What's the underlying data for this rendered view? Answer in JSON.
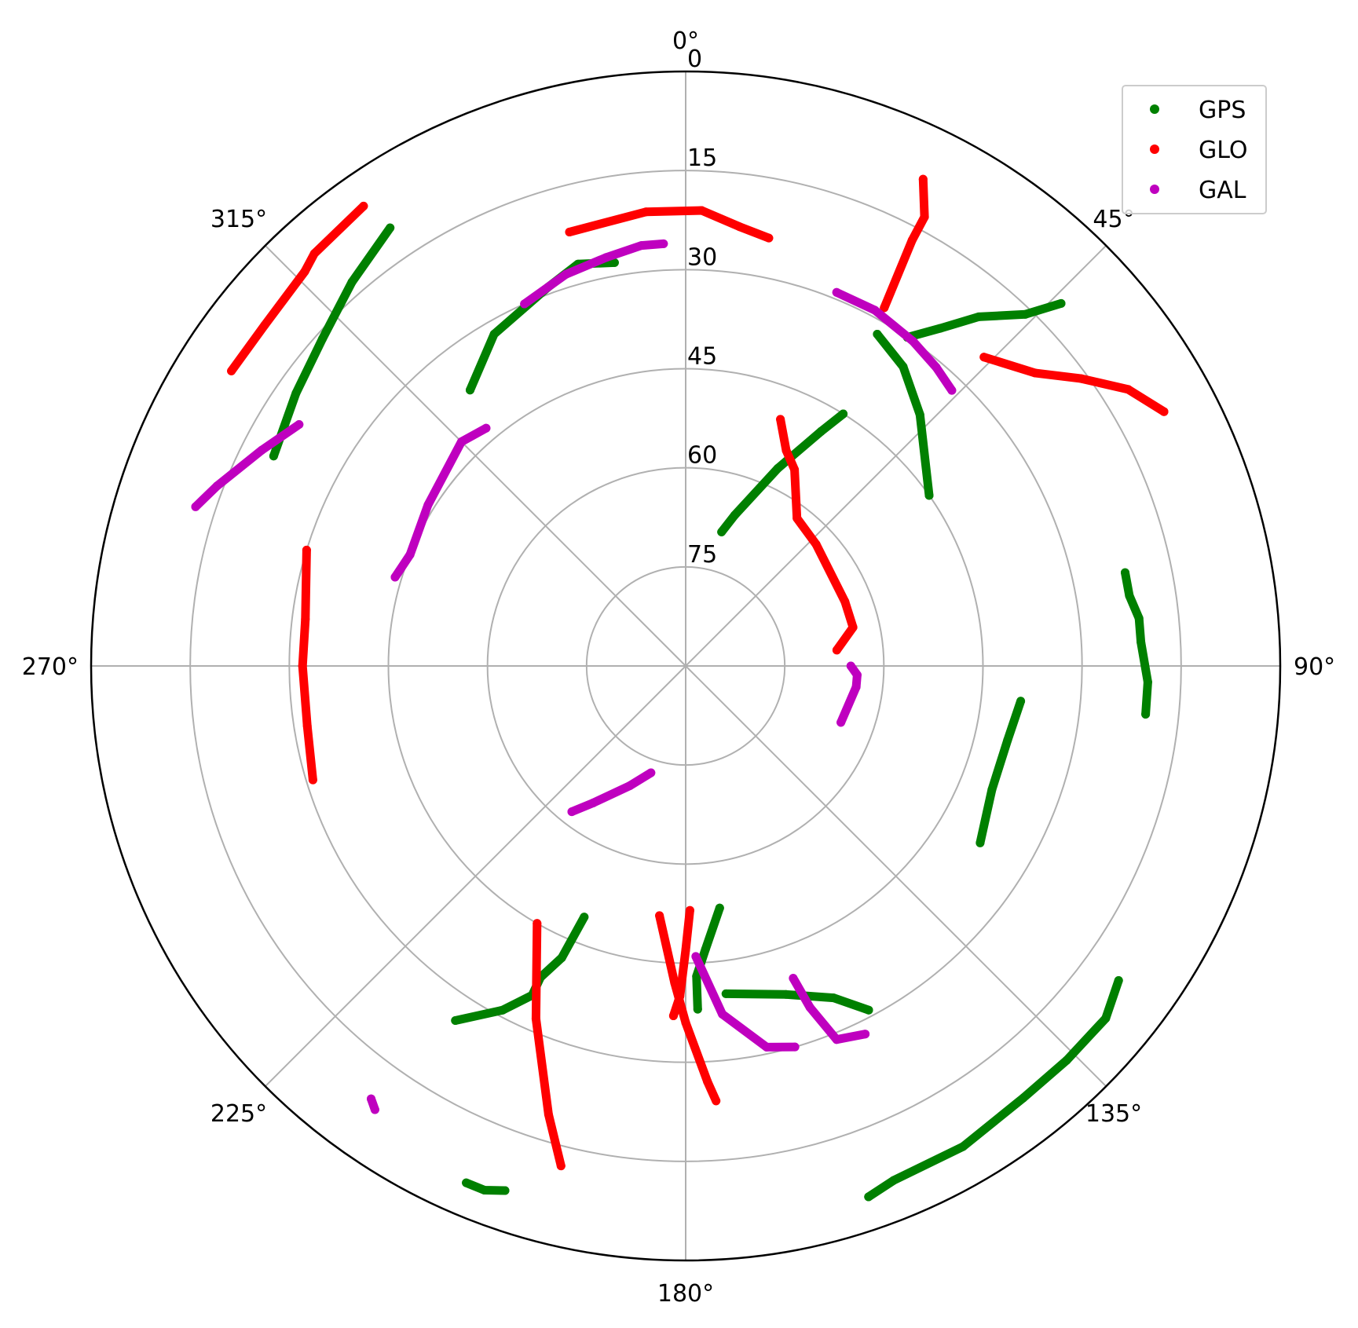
{
  "chart_data": {
    "type": "scatter",
    "projection": "polar",
    "theta_zero_location": "N",
    "theta_direction": "clockwise",
    "r_axis": "elevation (deg), inverted: 90 at center, 0 at rim",
    "rlim": [
      90,
      0
    ],
    "grid": true,
    "legend_position": "upper right",
    "theta_tick_labels": [
      "0°",
      "45°",
      "90°",
      "135°",
      "180°",
      "225°",
      "270°",
      "315°"
    ],
    "theta_tick_values": [
      0,
      45,
      90,
      135,
      180,
      225,
      270,
      315
    ],
    "r_tick_labels": [
      "0",
      "15",
      "30",
      "45",
      "60",
      "75"
    ],
    "r_tick_values": [
      0,
      15,
      30,
      45,
      60,
      75
    ],
    "series": [
      {
        "name": "GPS",
        "color": "#008000",
        "tracks": [
          [
            [
              55,
              45
            ],
            [
              43,
              38
            ],
            [
              36,
              34
            ],
            [
              30,
              32
            ]
          ],
          [
            [
              322,
              37
            ],
            [
              330,
              32
            ],
            [
              340,
              29
            ],
            [
              345,
              27
            ],
            [
              350,
              28
            ]
          ],
          [
            [
              297,
              20
            ],
            [
              305,
              18
            ],
            [
              312,
              16
            ],
            [
              319,
              13
            ],
            [
              326,
              10
            ]
          ],
          [
            [
              34,
              30
            ],
            [
              37,
              26
            ],
            [
              40,
              21
            ],
            [
              44,
              16
            ],
            [
              46,
              11
            ]
          ],
          [
            [
              32,
              45
            ],
            [
              30,
              49
            ],
            [
              25,
              57
            ],
            [
              18,
              66
            ],
            [
              15,
              69
            ]
          ],
          [
            [
              78,
              22
            ],
            [
              81,
              22
            ],
            [
              84,
              21
            ],
            [
              87,
              21
            ],
            [
              92,
              20
            ],
            [
              96,
              20
            ]
          ],
          [
            [
              96,
              39
            ],
            [
              103,
              40
            ],
            [
              112,
              40
            ],
            [
              121,
              38
            ]
          ],
          [
            [
              172,
              53
            ],
            [
              176,
              47
            ],
            [
              178,
              43
            ],
            [
              178,
              38
            ]
          ],
          [
            [
              202,
              49
            ],
            [
              203,
              42
            ],
            [
              205,
              38
            ],
            [
              205,
              35
            ],
            [
              208,
              31
            ],
            [
              213,
              26
            ]
          ],
          [
            [
              173,
              40
            ],
            [
              163,
              38
            ],
            [
              156,
              35
            ],
            [
              152,
              31
            ]
          ],
          [
            [
              126,
              9
            ],
            [
              130,
              7
            ],
            [
              136,
              7
            ],
            [
              142,
              7
            ],
            [
              150,
              6
            ],
            [
              158,
              6
            ],
            [
              161,
              5
            ]
          ],
          [
            [
              199,
              6
            ],
            [
              201,
              5
            ],
            [
              203,
              5
            ]
          ]
        ]
      },
      {
        "name": "GLO",
        "color": "#ff0000",
        "tracks": [
          [
            [
              345,
              22
            ],
            [
              355,
              21
            ],
            [
              2,
              21
            ],
            [
              7,
              23
            ],
            [
              11,
              24
            ]
          ],
          [
            [
              325,
              5
            ],
            [
              318,
              6
            ],
            [
              316,
              7
            ],
            [
              309,
              8
            ],
            [
              303,
              8
            ]
          ],
          [
            [
              26,
              8
            ],
            [
              28,
              13
            ],
            [
              28,
              17
            ],
            [
              29,
              28
            ]
          ],
          [
            [
              44,
              25
            ],
            [
              50,
              21
            ],
            [
              54,
              16
            ],
            [
              58,
              11
            ],
            [
              62,
              8
            ]
          ],
          [
            [
              21,
              50
            ],
            [
              25,
              54
            ],
            [
              29,
              56
            ],
            [
              37,
              62
            ],
            [
              47,
              63
            ],
            [
              68,
              64
            ],
            [
              77,
              64
            ],
            [
              84,
              67
            ]
          ],
          [
            [
              287,
              30
            ],
            [
              277,
              32
            ],
            [
              270,
              32
            ],
            [
              261,
              32
            ],
            [
              253,
              31
            ]
          ],
          [
            [
              210,
              45
            ],
            [
              203,
              32
            ],
            [
              197,
              19
            ],
            [
              194,
              12
            ]
          ],
          [
            [
              186,
              52
            ],
            [
              182,
              42
            ],
            [
              180,
              36
            ],
            [
              177,
              27
            ],
            [
              176,
              24
            ]
          ],
          [
            [
              179,
              53
            ],
            [
              180,
              47
            ],
            [
              181,
              40
            ],
            [
              182,
              37
            ]
          ]
        ]
      },
      {
        "name": "GAL",
        "color": "#bf00bf",
        "tracks": [
          [
            [
              336,
              30
            ],
            [
              343,
              28
            ],
            [
              349,
              27
            ],
            [
              354,
              26
            ],
            [
              357,
              26
            ]
          ],
          [
            [
              22,
              29
            ],
            [
              28,
              29
            ],
            [
              35,
              30
            ],
            [
              40,
              31
            ],
            [
              44,
              32
            ]
          ],
          [
            [
              302,
              21
            ],
            [
              297,
              18
            ],
            [
              291,
              14
            ],
            [
              288,
              12
            ]
          ],
          [
            [
              320,
              43
            ],
            [
              315,
              42
            ],
            [
              302,
              44
            ],
            [
              292,
              45
            ],
            [
              287,
              44
            ]
          ],
          [
            [
              90,
              65
            ],
            [
              93,
              64
            ],
            [
              97,
              64
            ],
            [
              110,
              65
            ]
          ],
          [
            [
              198,
              73
            ],
            [
              205,
              70
            ],
            [
              214,
              65
            ],
            [
              218,
              62
            ]
          ],
          [
            [
              178,
              46
            ],
            [
              174,
              37
            ],
            [
              168,
              31
            ],
            [
              164,
              30
            ]
          ],
          [
            [
              161,
              40
            ],
            [
              160,
              35
            ],
            [
              158,
              29
            ],
            [
              154,
              28
            ]
          ],
          [
            [
              216,
              9
            ],
            [
              215,
              8
            ]
          ]
        ]
      }
    ]
  }
}
